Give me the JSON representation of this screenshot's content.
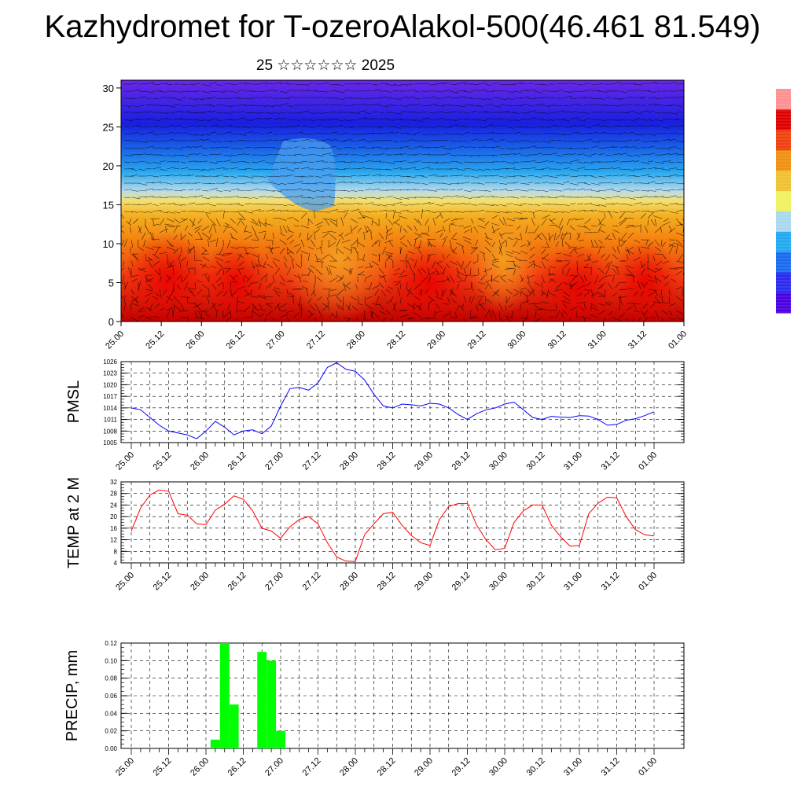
{
  "title": "Kazhydromet for T-ozeroAlakol-500(46.461 81.549)",
  "subtitle": "25 ☆☆☆☆☆☆ 2025",
  "time_labels": [
    "25.00",
    "25.12",
    "26.00",
    "26.12",
    "27.00",
    "27.12",
    "28.00",
    "28.12",
    "29.00",
    "29.12",
    "30.00",
    "30.12",
    "31.00",
    "31.12",
    "01.00"
  ],
  "colors": {
    "pmsl_line": "#0000ff",
    "temp_line": "#ff0000",
    "precip_bar": "#00ff00",
    "colorbar": [
      "#4a00e0",
      "#2a2af0",
      "#1a6af0",
      "#22a8f0",
      "#a8d8f0",
      "#f0f060",
      "#f0c030",
      "#f09010",
      "#f04010",
      "#e00000",
      "#ff9090"
    ]
  },
  "chart_data": [
    {
      "type": "heatmap",
      "name": "vertical-cross-section",
      "ylim": [
        0,
        31
      ],
      "yticks": [
        0,
        5,
        10,
        15,
        20,
        25,
        30
      ],
      "x": [
        "25.00",
        "25.12",
        "26.00",
        "26.12",
        "27.00",
        "27.12",
        "28.00",
        "28.12",
        "29.00",
        "29.12",
        "30.00",
        "30.12",
        "31.00",
        "31.12",
        "01.00"
      ],
      "overlay": "wind-barbs"
    },
    {
      "type": "line",
      "ylabel": "PMSL",
      "ylim": [
        1005,
        1026
      ],
      "yticks": [
        1005,
        1008,
        1011,
        1014,
        1017,
        1020,
        1023,
        1026
      ],
      "step_hours": 3,
      "x_start": "25.00",
      "values": [
        1014,
        1013.5,
        1011.5,
        1009.5,
        1008,
        1007.5,
        1007,
        1006,
        1008,
        1010.5,
        1009,
        1007,
        1008,
        1008.3,
        1007.3,
        1009.3,
        1014.5,
        1019,
        1019.3,
        1018.6,
        1020.5,
        1024.5,
        1025.7,
        1024,
        1023.5,
        1021.2,
        1017.5,
        1014.5,
        1014,
        1015,
        1014.8,
        1014.5,
        1015.2,
        1015,
        1014,
        1012.3,
        1011,
        1012.5,
        1013.5,
        1014,
        1015,
        1015.5,
        1013.5,
        1011.5,
        1011,
        1011.8,
        1011.6,
        1011.5,
        1012,
        1011.9,
        1011,
        1009.5,
        1009.7,
        1010.8,
        1011.2,
        1012,
        1013
      ]
    },
    {
      "type": "line",
      "ylabel": "TEMP at 2 M",
      "ylim": [
        4,
        32
      ],
      "yticks": [
        4,
        8,
        12,
        16,
        20,
        24,
        28,
        32
      ],
      "step_hours": 3,
      "x_start": "25.00",
      "values": [
        15,
        23,
        27.5,
        29.2,
        28.8,
        21,
        20.5,
        17.5,
        17.2,
        22.2,
        24.3,
        27.2,
        26,
        22,
        16,
        15,
        12.5,
        16.5,
        19,
        20,
        17.5,
        11,
        6,
        4.6,
        4.5,
        13.8,
        17.5,
        21,
        21.5,
        17,
        13.5,
        11,
        10,
        19,
        23.5,
        24.5,
        24.5,
        17,
        12,
        8.5,
        9,
        18,
        22,
        24,
        24,
        17,
        13,
        9.8,
        10,
        21,
        24.6,
        26.7,
        26.5,
        20,
        15.5,
        13.7,
        13.3
      ]
    },
    {
      "type": "bar",
      "ylabel": "PRECIP, mm",
      "ylim": [
        0,
        0.12
      ],
      "yticks": [
        "0.00",
        "0.02",
        "0.04",
        "0.06",
        "0.08",
        "0.10",
        "0.12"
      ],
      "step_hours": 3,
      "x_start": "25.00",
      "values": [
        0,
        0,
        0,
        0,
        0,
        0,
        0,
        0,
        0,
        0.01,
        0.12,
        0.05,
        0,
        0,
        0.11,
        0.1,
        0.02,
        0,
        0,
        0,
        0,
        0,
        0,
        0,
        0,
        0,
        0,
        0,
        0,
        0,
        0,
        0,
        0,
        0,
        0,
        0,
        0,
        0,
        0,
        0,
        0,
        0,
        0,
        0,
        0,
        0,
        0,
        0,
        0,
        0,
        0,
        0,
        0,
        0,
        0,
        0,
        0
      ]
    }
  ]
}
